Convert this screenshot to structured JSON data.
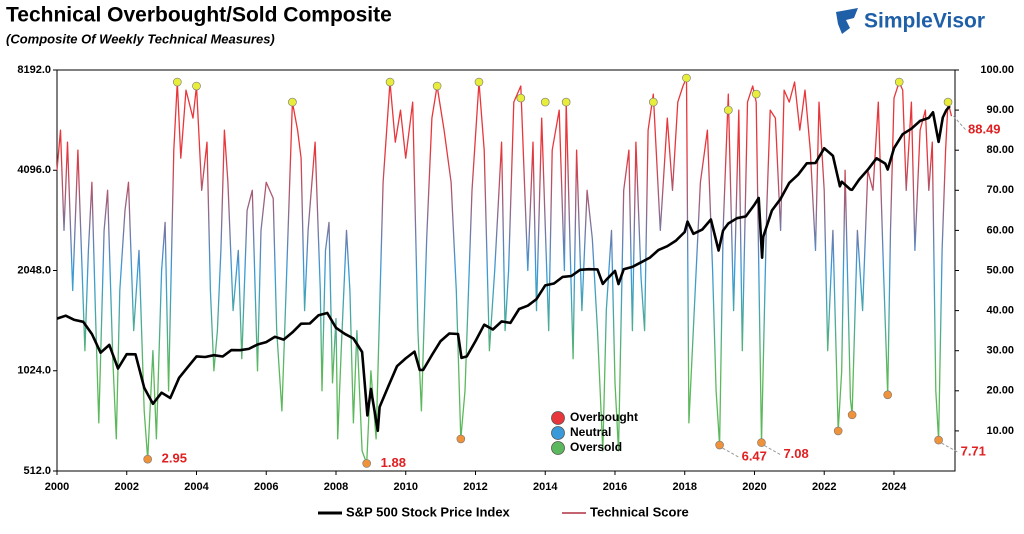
{
  "logo": "SimpleVisor",
  "chart_data": {
    "type": "line",
    "title": "Technical Overbought/Sold Composite",
    "subtitle": "(Composite Of Weekly Technical Measures)",
    "xlim": [
      2000,
      2025.75
    ],
    "xticks": [
      2000,
      2002,
      2004,
      2006,
      2008,
      2010,
      2012,
      2014,
      2016,
      2018,
      2020,
      2022,
      2024
    ],
    "ylim": [
      512,
      8192
    ],
    "log_y": true,
    "yticks": [
      {
        "value": 512,
        "label": "512.0"
      },
      {
        "value": 1024,
        "label": "1024.0"
      },
      {
        "value": 2048,
        "label": "2048.0"
      },
      {
        "value": 4096,
        "label": "4096.0"
      },
      {
        "value": 8192,
        "label": "8192.0"
      }
    ],
    "y2lim": [
      0,
      100
    ],
    "y2ticks": [
      {
        "value": 10,
        "label": "10.00"
      },
      {
        "value": 20,
        "label": "20.00"
      },
      {
        "value": 30,
        "label": "30.00"
      },
      {
        "value": 40,
        "label": "40.00"
      },
      {
        "value": 50,
        "label": "50.00"
      },
      {
        "value": 60,
        "label": "60.00"
      },
      {
        "value": 70,
        "label": "70.00"
      },
      {
        "value": 80,
        "label": "80.00"
      },
      {
        "value": 90,
        "label": "90.00"
      },
      {
        "value": 100,
        "label": "100.00"
      }
    ],
    "grid": false,
    "series": [
      {
        "name": "S&P 500 Stock Price Index",
        "color": "#000000",
        "x": [
          2000,
          2000.25,
          2000.5,
          2000.75,
          2001,
          2001.25,
          2001.5,
          2001.75,
          2002,
          2002.25,
          2002.5,
          2002.75,
          2003,
          2003.25,
          2003.5,
          2003.75,
          2004,
          2004.25,
          2004.5,
          2004.75,
          2005,
          2005.25,
          2005.5,
          2005.75,
          2006,
          2006.25,
          2006.5,
          2006.75,
          2007,
          2007.25,
          2007.5,
          2007.75,
          2008,
          2008.25,
          2008.5,
          2008.75,
          2008.9,
          2009,
          2009.2,
          2009.25,
          2009.5,
          2009.75,
          2010,
          2010.25,
          2010.4,
          2010.5,
          2010.75,
          2011,
          2011.25,
          2011.5,
          2011.6,
          2011.75,
          2012,
          2012.25,
          2012.5,
          2012.75,
          2013,
          2013.25,
          2013.5,
          2013.75,
          2014,
          2014.25,
          2014.5,
          2014.75,
          2015,
          2015.25,
          2015.5,
          2015.65,
          2015.75,
          2016,
          2016.1,
          2016.25,
          2016.5,
          2016.75,
          2017,
          2017.25,
          2017.5,
          2017.75,
          2018,
          2018.08,
          2018.25,
          2018.5,
          2018.75,
          2018.97,
          2019.1,
          2019.25,
          2019.5,
          2019.75,
          2020,
          2020.12,
          2020.22,
          2020.25,
          2020.5,
          2020.75,
          2021,
          2021.25,
          2021.5,
          2021.75,
          2022,
          2022.25,
          2022.45,
          2022.5,
          2022.75,
          2022.8,
          2023,
          2023.25,
          2023.5,
          2023.75,
          2023.82,
          2024,
          2024.25,
          2024.5,
          2024.75,
          2025,
          2025.12,
          2025.28,
          2025.4,
          2025.5,
          2025.6
        ],
        "values": [
          1469,
          1498,
          1455,
          1436,
          1320,
          1160,
          1224,
          1040,
          1148,
          1147,
          911,
          815,
          880,
          848,
          975,
          1050,
          1131,
          1126,
          1140,
          1130,
          1181,
          1180,
          1191,
          1228,
          1248,
          1295,
          1270,
          1335,
          1418,
          1420,
          1503,
          1527,
          1378,
          1322,
          1280,
          1166,
          752,
          903,
          676,
          797,
          919,
          1057,
          1115,
          1169,
          1030,
          1030,
          1141,
          1257,
          1325,
          1320,
          1119,
          1131,
          1257,
          1408,
          1362,
          1440,
          1426,
          1569,
          1606,
          1681,
          1848,
          1872,
          1960,
          1972,
          2058,
          2067,
          2063,
          1867,
          1920,
          2043,
          1864,
          2065,
          2099,
          2168,
          2239,
          2362,
          2423,
          2519,
          2673,
          2872,
          2640,
          2718,
          2913,
          2351,
          2700,
          2834,
          2941,
          2976,
          3230,
          3380,
          2237,
          2584,
          3100,
          3363,
          3756,
          3973,
          4297,
          4307,
          4766,
          4530,
          3667,
          3785,
          3585,
          3577,
          3839,
          4109,
          4450,
          4288,
          4117,
          4769,
          5254,
          5460,
          5762,
          5881,
          6114,
          4982,
          5900,
          6204,
          6389
        ]
      },
      {
        "name": "Technical Score",
        "color": "#b03040",
        "axis": "y2",
        "x": [
          2000,
          2000.1,
          2000.2,
          2000.3,
          2000.45,
          2000.6,
          2000.7,
          2000.8,
          2000.9,
          2001,
          2001.1,
          2001.2,
          2001.35,
          2001.45,
          2001.6,
          2001.7,
          2001.8,
          2001.95,
          2002.05,
          2002.2,
          2002.35,
          2002.5,
          2002.6,
          2002.75,
          2002.85,
          2003,
          2003.1,
          2003.2,
          2003.35,
          2003.45,
          2003.55,
          2003.7,
          2003.9,
          2004,
          2004.15,
          2004.3,
          2004.4,
          2004.5,
          2004.6,
          2004.7,
          2004.8,
          2004.9,
          2005.05,
          2005.2,
          2005.3,
          2005.45,
          2005.6,
          2005.75,
          2005.85,
          2006,
          2006.2,
          2006.3,
          2006.45,
          2006.55,
          2006.75,
          2006.9,
          2007,
          2007.1,
          2007.2,
          2007.4,
          2007.55,
          2007.6,
          2007.7,
          2007.8,
          2007.9,
          2008,
          2008.05,
          2008.15,
          2008.3,
          2008.4,
          2008.5,
          2008.6,
          2008.75,
          2008.88,
          2009,
          2009.15,
          2009.35,
          2009.55,
          2009.7,
          2009.85,
          2010,
          2010.2,
          2010.35,
          2010.45,
          2010.6,
          2010.75,
          2010.9,
          2011.1,
          2011.3,
          2011.45,
          2011.58,
          2011.7,
          2011.9,
          2012.1,
          2012.25,
          2012.4,
          2012.55,
          2012.75,
          2012.85,
          2012.95,
          2013.1,
          2013.3,
          2013.5,
          2013.65,
          2013.75,
          2013.9,
          2014.1,
          2014.2,
          2014.4,
          2014.55,
          2014.6,
          2014.8,
          2014.9,
          2015.05,
          2015.2,
          2015.35,
          2015.5,
          2015.65,
          2015.75,
          2015.9,
          2016,
          2016.1,
          2016.25,
          2016.4,
          2016.5,
          2016.6,
          2016.75,
          2016.85,
          2016.95,
          2017.1,
          2017.3,
          2017.5,
          2017.65,
          2017.8,
          2017.95,
          2018.05,
          2018.12,
          2018.3,
          2018.45,
          2018.65,
          2018.8,
          2018.9,
          2019,
          2019.1,
          2019.25,
          2019.4,
          2019.55,
          2019.65,
          2019.8,
          2019.95,
          2020.05,
          2020.2,
          2020.35,
          2020.45,
          2020.6,
          2020.75,
          2020.85,
          2021,
          2021.15,
          2021.3,
          2021.45,
          2021.6,
          2021.75,
          2021.85,
          2022,
          2022.1,
          2022.25,
          2022.4,
          2022.5,
          2022.6,
          2022.75,
          2022.8,
          2022.95,
          2023.1,
          2023.25,
          2023.4,
          2023.55,
          2023.7,
          2023.82,
          2023.9,
          2024,
          2024.15,
          2024.25,
          2024.35,
          2024.5,
          2024.6,
          2024.75,
          2024.9,
          2025,
          2025.1,
          2025.2,
          2025.28,
          2025.38,
          2025.48,
          2025.55,
          2025.65
        ],
        "values": [
          75,
          85,
          60,
          82,
          45,
          80,
          55,
          30,
          55,
          72,
          40,
          12,
          60,
          70,
          28,
          8,
          45,
          65,
          72,
          35,
          55,
          15,
          2.95,
          30,
          8,
          50,
          62,
          20,
          80,
          97,
          78,
          95,
          88,
          96,
          70,
          82,
          45,
          25,
          35,
          55,
          85,
          72,
          40,
          55,
          28,
          65,
          70,
          25,
          60,
          72,
          68,
          35,
          15,
          40,
          92,
          85,
          78,
          40,
          60,
          82,
          45,
          20,
          55,
          62,
          22,
          38,
          8,
          30,
          60,
          45,
          12,
          35,
          5,
          1.88,
          25,
          8,
          72,
          97,
          82,
          90,
          78,
          92,
          35,
          15,
          58,
          88,
          96,
          85,
          72,
          45,
          8,
          20,
          70,
          97,
          80,
          30,
          50,
          82,
          35,
          50,
          92,
          96,
          50,
          82,
          40,
          88,
          35,
          80,
          90,
          50,
          92,
          28,
          80,
          40,
          70,
          58,
          35,
          5,
          40,
          60,
          22,
          5,
          70,
          80,
          35,
          82,
          48,
          35,
          85,
          94,
          60,
          88,
          70,
          92,
          96,
          98,
          12,
          45,
          72,
          85,
          50,
          20,
          6.47,
          60,
          94,
          40,
          90,
          30,
          92,
          96,
          92,
          7.08,
          65,
          90,
          88,
          60,
          95,
          92,
          97,
          85,
          95,
          80,
          55,
          92,
          70,
          30,
          60,
          10,
          25,
          75,
          18,
          14,
          60,
          40,
          75,
          70,
          92,
          50,
          19,
          60,
          93,
          97,
          95,
          70,
          92,
          55,
          85,
          90,
          70,
          82,
          20,
          7.71,
          55,
          80,
          92,
          88.49
        ]
      }
    ],
    "zones": [
      {
        "name": "Overbought",
        "color": "#e8363a"
      },
      {
        "name": "Neutral",
        "color": "#3a9ad9"
      },
      {
        "name": "Oversold",
        "color": "#5cb85c"
      }
    ],
    "markers": [
      {
        "x": 2003.45,
        "value": 97,
        "color": "#e8ec3a"
      },
      {
        "x": 2004.0,
        "value": 96,
        "color": "#e8ec3a"
      },
      {
        "x": 2006.75,
        "value": 92,
        "color": "#e8ec3a"
      },
      {
        "x": 2009.55,
        "value": 97,
        "color": "#e8ec3a"
      },
      {
        "x": 2010.9,
        "value": 96,
        "color": "#e8ec3a"
      },
      {
        "x": 2012.1,
        "value": 97,
        "color": "#e8ec3a"
      },
      {
        "x": 2013.3,
        "value": 93,
        "color": "#e8ec3a"
      },
      {
        "x": 2014.0,
        "value": 92,
        "color": "#e8ec3a"
      },
      {
        "x": 2014.6,
        "value": 92,
        "color": "#e8ec3a"
      },
      {
        "x": 2017.1,
        "value": 92,
        "color": "#e8ec3a"
      },
      {
        "x": 2018.05,
        "value": 98,
        "color": "#e8ec3a"
      },
      {
        "x": 2019.25,
        "value": 90,
        "color": "#e8ec3a"
      },
      {
        "x": 2020.05,
        "value": 94,
        "color": "#e8ec3a"
      },
      {
        "x": 2024.15,
        "value": 97,
        "color": "#e8ec3a"
      },
      {
        "x": 2025.55,
        "value": 92,
        "color": "#e8ec3a"
      },
      {
        "x": 2002.6,
        "value": 2.95,
        "color": "#f0923a",
        "show_label": true
      },
      {
        "x": 2008.88,
        "value": 1.88,
        "color": "#f0923a",
        "show_label": true
      },
      {
        "x": 2011.58,
        "value": 8,
        "color": "#f0923a"
      },
      {
        "x": 2019.0,
        "value": 6.47,
        "color": "#f0923a",
        "show_label": true
      },
      {
        "x": 2020.2,
        "value": 7.08,
        "color": "#f0923a",
        "show_label": true
      },
      {
        "x": 2022.4,
        "value": 10,
        "color": "#f0923a"
      },
      {
        "x": 2022.8,
        "value": 14,
        "color": "#f0923a"
      },
      {
        "x": 2023.82,
        "value": 19,
        "color": "#f0923a"
      },
      {
        "x": 2025.28,
        "value": 7.71,
        "color": "#f0923a",
        "show_label": true
      }
    ],
    "end_label": {
      "value": 88.49,
      "color": "#e02020"
    }
  }
}
